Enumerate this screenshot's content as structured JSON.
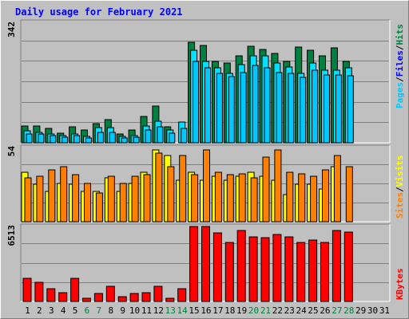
{
  "title": "Daily usage for February 2021",
  "colors": {
    "background": "#c0c0c0",
    "title": "#0000ff",
    "hits": "#008040",
    "files": "#00e0ff",
    "pages": "#00c8ff",
    "visits": "#ffff00",
    "sites": "#ff8000",
    "kbytes": "#ff0000",
    "weekend_label": "#008040"
  },
  "chart_data": [
    {
      "type": "bar",
      "panel": "top",
      "max_label": "342",
      "ylim": [
        0,
        342
      ],
      "legend": {
        "pages": "Pages",
        "slash1": "/",
        "files": "Files",
        "slash2": "/",
        "hits": "Hits"
      },
      "categories": [
        "1",
        "2",
        "3",
        "4",
        "5",
        "6",
        "7",
        "8",
        "9",
        "10",
        "11",
        "12",
        "13",
        "14",
        "15",
        "16",
        "17",
        "18",
        "19",
        "20",
        "21",
        "22",
        "23",
        "24",
        "25",
        "26",
        "27",
        "28",
        "29",
        "30",
        "31"
      ],
      "series": [
        {
          "name": "Hits",
          "values": [
            48,
            48,
            40,
            28,
            46,
            36,
            54,
            66,
            26,
            36,
            74,
            104,
            46,
            0,
            285,
            276,
            230,
            226,
            246,
            275,
            265,
            254,
            232,
            272,
            262,
            246,
            270,
            230,
            0,
            0,
            0
          ]
        },
        {
          "name": "Files",
          "values": [
            33,
            30,
            25,
            20,
            26,
            18,
            44,
            42,
            18,
            20,
            48,
            62,
            36,
            58,
            262,
            232,
            212,
            196,
            222,
            246,
            246,
            226,
            216,
            196,
            226,
            206,
            206,
            212,
            0,
            0,
            0
          ]
        },
        {
          "name": "Pages",
          "values": [
            26,
            26,
            20,
            16,
            20,
            14,
            30,
            30,
            14,
            16,
            36,
            46,
            28,
            40,
            230,
            212,
            196,
            188,
            200,
            220,
            212,
            200,
            196,
            186,
            206,
            192,
            192,
            190,
            0,
            0,
            0
          ]
        }
      ]
    },
    {
      "type": "bar",
      "panel": "middle",
      "max_label": "54",
      "ylim": [
        0,
        54
      ],
      "legend": {
        "sites": "Sites",
        "slash": "/",
        "visits": "Visits"
      },
      "categories": [
        "1",
        "2",
        "3",
        "4",
        "5",
        "6",
        "7",
        "8",
        "9",
        "10",
        "11",
        "12",
        "13",
        "14",
        "15",
        "16",
        "17",
        "18",
        "19",
        "20",
        "21",
        "22",
        "23",
        "24",
        "25",
        "26",
        "27",
        "28",
        "29",
        "30",
        "31"
      ],
      "series": [
        {
          "name": "Visits",
          "values": [
            36,
            27,
            22,
            28,
            27,
            22,
            22,
            32,
            22,
            28,
            36,
            52,
            48,
            30,
            36,
            30,
            33,
            30,
            33,
            36,
            33,
            30,
            20,
            27,
            27,
            24,
            40,
            0,
            0,
            0,
            0
          ]
        },
        {
          "name": "Sites",
          "values": [
            32,
            33,
            38,
            40,
            34,
            28,
            21,
            33,
            28,
            33,
            34,
            50,
            40,
            48,
            34,
            52,
            36,
            34,
            35,
            32,
            47,
            52,
            36,
            35,
            33,
            38,
            48,
            40,
            0,
            0,
            0
          ]
        }
      ]
    },
    {
      "type": "bar",
      "panel": "bottom",
      "max_label": "6513",
      "ylim": [
        0,
        6513
      ],
      "legend": {
        "kbytes": "KBytes"
      },
      "categories": [
        "1",
        "2",
        "3",
        "4",
        "5",
        "6",
        "7",
        "8",
        "9",
        "10",
        "11",
        "12",
        "13",
        "14",
        "15",
        "16",
        "17",
        "18",
        "19",
        "20",
        "21",
        "22",
        "23",
        "24",
        "25",
        "26",
        "27",
        "28",
        "29",
        "30",
        "31"
      ],
      "series": [
        {
          "name": "KBytes",
          "values": [
            1980,
            1650,
            1080,
            780,
            1980,
            300,
            720,
            1320,
            420,
            660,
            780,
            1320,
            300,
            1140,
            6513,
            6513,
            5940,
            5100,
            6180,
            5640,
            5520,
            5820,
            5580,
            5100,
            5340,
            5160,
            6180,
            6060,
            0,
            0,
            0
          ]
        }
      ],
      "weekend_days": [
        "6",
        "7",
        "13",
        "14",
        "20",
        "21",
        "27",
        "28"
      ]
    }
  ]
}
